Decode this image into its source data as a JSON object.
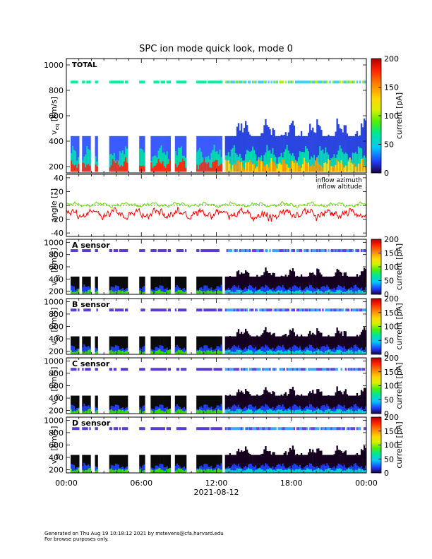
{
  "chart_data": {
    "title": "SPC ion mode quick look, mode 0",
    "type": "heatmap",
    "date_label": "2021-08-12",
    "x_ticks": [
      {
        "hour": 0,
        "label": "00:00"
      },
      {
        "hour": 6,
        "label": "06:00"
      },
      {
        "hour": 12,
        "label": "12:00"
      },
      {
        "hour": 18,
        "label": "18:00"
      },
      {
        "hour": 24,
        "label": "00:00"
      }
    ],
    "x_range_hours": [
      0,
      24
    ],
    "data_gaps_hours": [
      [
        0.0,
        0.3
      ],
      [
        1.05,
        1.3
      ],
      [
        2.0,
        2.25
      ],
      [
        2.55,
        3.4
      ],
      [
        4.95,
        5.8
      ],
      [
        6.3,
        6.7
      ],
      [
        8.3,
        8.7
      ],
      [
        9.55,
        10.4
      ],
      [
        12.45,
        12.65
      ]
    ],
    "spectrogram_panels": [
      {
        "id": "total",
        "label": "TOTAL",
        "ylabel": "v_eq [km/s]",
        "ylim": [
          150,
          1050
        ],
        "yticks": [
          "200",
          "400",
          "600",
          "800",
          "1000"
        ],
        "colorbar_label": "current [pA]",
        "colorbar_range": [
          0,
          200
        ],
        "colorbar_ticks": [
          "0",
          "50",
          "100",
          "150",
          "200"
        ]
      },
      {
        "id": "a",
        "label": "A sensor",
        "ylabel": "v_eq [km/s]",
        "ylim": [
          150,
          1050
        ],
        "yticks": [
          "200",
          "400",
          "600",
          "800",
          "1000"
        ],
        "colorbar_label": "current [pA]",
        "colorbar_range": [
          0,
          200
        ],
        "colorbar_ticks": [
          "0",
          "50",
          "100",
          "150",
          "200"
        ]
      },
      {
        "id": "b",
        "label": "B sensor",
        "ylabel": "v_eq [km/s]",
        "ylim": [
          150,
          1050
        ],
        "yticks": [
          "200",
          "400",
          "600",
          "800",
          "1000"
        ],
        "colorbar_label": "current [pA]",
        "colorbar_range": [
          0,
          200
        ],
        "colorbar_ticks": [
          "0",
          "50",
          "100",
          "150",
          "200"
        ]
      },
      {
        "id": "c",
        "label": "C sensor",
        "ylabel": "v_eq [km/s]",
        "ylim": [
          150,
          1050
        ],
        "yticks": [
          "200",
          "400",
          "600",
          "800",
          "1000"
        ],
        "colorbar_label": "current [pA]",
        "colorbar_range": [
          0,
          200
        ],
        "colorbar_ticks": [
          "0",
          "50",
          "100",
          "150",
          "200"
        ]
      },
      {
        "id": "d",
        "label": "D sensor",
        "ylabel": "v_eq [km/s]",
        "ylim": [
          150,
          1050
        ],
        "yticks": [
          "200",
          "400",
          "600",
          "800",
          "1000"
        ],
        "colorbar_label": "current [pA]",
        "colorbar_range": [
          0,
          200
        ],
        "colorbar_ticks": [
          "0",
          "50",
          "100",
          "150",
          "200"
        ]
      }
    ],
    "angle_panel": {
      "type": "line",
      "ylabel": "angle [°]",
      "ylim": [
        -45,
        45
      ],
      "yticks": [
        "-40",
        "-20",
        "0",
        "20",
        "40"
      ],
      "series": [
        {
          "name": "inflow azimuth",
          "color": "#ff0000",
          "approx_mean_deg": -12
        },
        {
          "name": "inflow altitude",
          "color": "#66e000",
          "approx_mean_deg": 1
        }
      ]
    }
  },
  "footer": {
    "line1": "Generated on Thu Aug 19 10:18:12 2021 by mstevens@cfa.harvard.edu",
    "line2": "For browse purposes only."
  }
}
